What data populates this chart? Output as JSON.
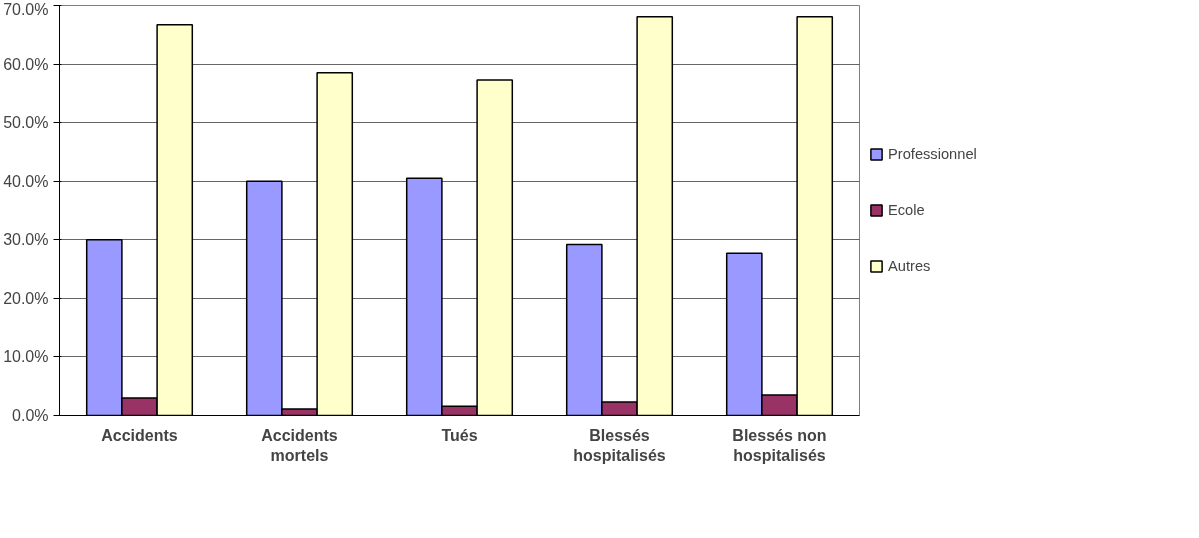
{
  "chart_data": {
    "type": "bar",
    "categories": [
      "Accidents",
      "Accidents mortels",
      "Tués",
      "Blessés hospitalisés",
      "Blessés non hospitalisés"
    ],
    "series": [
      {
        "name": "Professionnel",
        "color": "#9999ff",
        "values": [
          30,
          40,
          40.5,
          29.2,
          27.7
        ]
      },
      {
        "name": "Ecole",
        "color": "#993366",
        "values": [
          3,
          1.1,
          1.6,
          2.3,
          3.5
        ]
      },
      {
        "name": "Autres",
        "color": "#ffffcc",
        "values": [
          66.7,
          58.5,
          57.3,
          68.1,
          68.1
        ]
      }
    ],
    "ylim": [
      0,
      70
    ],
    "yticks": [
      {
        "value": 0,
        "label": "0.0%"
      },
      {
        "value": 10,
        "label": "10.0%"
      },
      {
        "value": 20,
        "label": "20.0%"
      },
      {
        "value": 30,
        "label": "30.0%"
      },
      {
        "value": 40,
        "label": "40.0%"
      },
      {
        "value": 50,
        "label": "50.0%"
      },
      {
        "value": 60,
        "label": "60.0%"
      },
      {
        "value": 70,
        "label": "70.0%"
      }
    ],
    "grid": "y",
    "legend": "right"
  }
}
